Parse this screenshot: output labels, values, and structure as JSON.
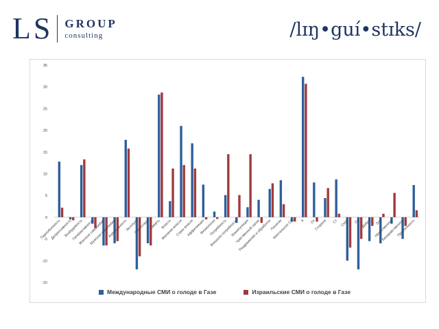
{
  "logos": {
    "left_main": "LS",
    "left_group": "GROUP",
    "left_sub": "consulting",
    "right": "/lɪŋ•guí•stɪks/"
  },
  "colors": {
    "series1": "#2e5f9a",
    "series2": "#a03a3e",
    "grid": "#d9d9d9",
    "axis": "#bfbfbf",
    "text": "#404040"
  },
  "chart_data": {
    "type": "bar",
    "title": "",
    "xlabel": "",
    "ylabel": "",
    "ylim": [
      -15,
      35
    ],
    "yticks": [
      -15,
      -10,
      -5,
      0,
      5,
      10,
      15,
      20,
      25,
      30,
      35
    ],
    "grid": false,
    "legend_position": "bottom",
    "categories": [
      "Парнобычность",
      "Депрессивность",
      "Возбудимость",
      "Гиперактивность",
      "Женское самолюбие",
      "Мужское самолюбие",
      "Агрессивность",
      "Эксплуат",
      "Отсутствие",
      "Смерть",
      "Власть",
      "Желание власти",
      "Страх власти",
      "Аффилиация",
      "Физиология",
      "Потребность",
      "Внешняя потребность",
      "Манипуляция",
      "Чувственный запах",
      "Раздражение и обработка",
      "Понятия",
      "Ментальное СД",
      "К",
      "От",
      "Сторона",
      "Ст",
      "Серп",
      "Пл",
      "Добро",
      "Зло",
      "Нравственное",
      "Безнравственное",
      "Практичность"
    ],
    "series": [
      {
        "name": "Международные СМИ о голоде в Газе",
        "values": [
          12.8,
          -0.5,
          12.0,
          -1.5,
          -6.5,
          -6.0,
          17.8,
          -12.0,
          -6.0,
          28.2,
          3.7,
          21.0,
          17.0,
          7.5,
          1.3,
          5.1,
          -1.3,
          2.3,
          4.0,
          6.5,
          8.5,
          -1.0,
          32.3,
          8.0,
          4.4,
          8.7,
          -10.0,
          -12.0,
          -5.5,
          -6.0,
          -1.5,
          -5.0,
          7.4
        ]
      },
      {
        "name": "Израильские СМИ о голоде в Газе",
        "values": [
          2.2,
          -0.7,
          13.3,
          -2.5,
          -6.5,
          -5.5,
          15.8,
          -9.0,
          -6.5,
          28.7,
          11.2,
          12.0,
          11.2,
          -0.5,
          -0.4,
          14.5,
          5.1,
          14.5,
          -1.3,
          7.8,
          3.0,
          -1.0,
          30.7,
          -1.0,
          6.7,
          0.8,
          -7.0,
          -5.0,
          -2.0,
          0.8,
          5.6,
          -2.0,
          1.6
        ]
      }
    ]
  }
}
